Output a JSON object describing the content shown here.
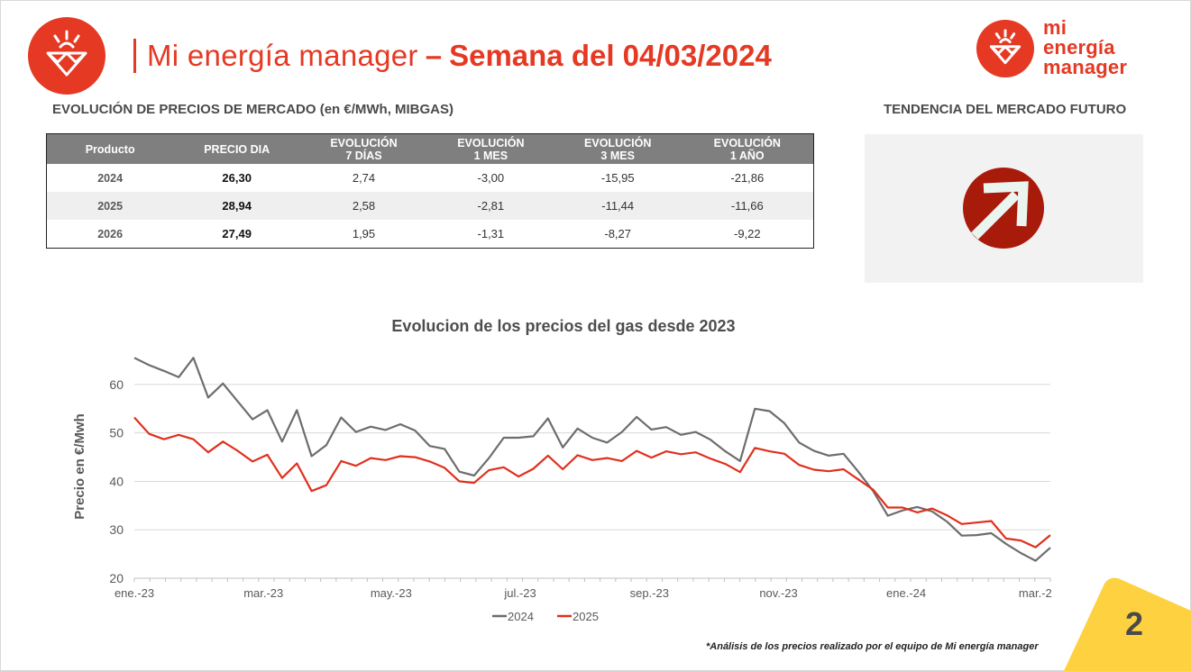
{
  "header": {
    "title_light": "Mi energía manager",
    "title_dash": "–",
    "title_bold": "Semana del 04/03/2024",
    "brand_lines": [
      "mi",
      "energía",
      "manager"
    ]
  },
  "sections": {
    "market_prices": "EVOLUCIÓN DE PRECIOS DE MERCADO (en €/MWh, MIBGAS)",
    "future_trend": "TENDENCIA DEL MERCADO FUTURO"
  },
  "table": {
    "headers": [
      [
        "Producto"
      ],
      [
        "PRECIO DIA"
      ],
      [
        "EVOLUCIÓN",
        "7 DÍAS"
      ],
      [
        "EVOLUCIÓN",
        "1 MES"
      ],
      [
        "EVOLUCIÓN",
        "3 MES"
      ],
      [
        "EVOLUCIÓN",
        "1 AÑO"
      ]
    ],
    "rows": [
      [
        "2024",
        "26,30",
        "2,74",
        "-3,00",
        "-15,95",
        "-21,86"
      ],
      [
        "2025",
        "28,94",
        "2,58",
        "-2,81",
        "-11,44",
        "-11,66"
      ],
      [
        "2026",
        "27,49",
        "1,95",
        "-1,31",
        "-8,27",
        "-9,22"
      ]
    ]
  },
  "trend": {
    "direction": "up",
    "icon": "arrow-up-right-icon",
    "color": "#a81a0a"
  },
  "colors": {
    "accent": "#e53923",
    "series_2024": "#6d6d6d",
    "series_2025": "#e0301e",
    "corner": "#fdd13f"
  },
  "chart_data": {
    "type": "line",
    "title": "Evolucion de los precios del gas desde 2023",
    "xlabel": "",
    "ylabel": "Precio en €/Mwh",
    "ylim": [
      20,
      65
    ],
    "yticks": [
      20,
      30,
      40,
      50,
      60
    ],
    "xlim": [
      0,
      61
    ],
    "x_ticks": [
      {
        "x": 0,
        "label": "ene.-23"
      },
      {
        "x": 8.6,
        "label": "mar.-23"
      },
      {
        "x": 17.1,
        "label": "may.-23"
      },
      {
        "x": 25.7,
        "label": "jul.-23"
      },
      {
        "x": 34.3,
        "label": "sep.-23"
      },
      {
        "x": 42.9,
        "label": "nov.-23"
      },
      {
        "x": 51.4,
        "label": "ene.-24"
      },
      {
        "x": 60,
        "label": "mar.-2"
      }
    ],
    "grid": true,
    "legend_position": "bottom",
    "series": [
      {
        "name": "2024",
        "values": [
          65.5,
          64,
          62.8,
          61.5,
          65.5,
          57.3,
          60.2,
          56.5,
          52.8,
          54.7,
          48.2,
          54.7,
          45.2,
          47.5,
          53.2,
          50.2,
          51.3,
          50.6,
          51.8,
          50.5,
          47.3,
          46.7,
          42,
          41.2,
          44.8,
          49,
          49,
          49.3,
          53,
          47,
          50.9,
          49,
          48,
          50.2,
          53.3,
          50.7,
          51.2,
          49.6,
          50.2,
          48.6,
          46.2,
          44.2,
          55,
          54.5,
          52,
          48,
          46.3,
          45.3,
          45.7,
          42,
          38,
          32.9,
          34,
          34.7,
          33.8,
          31.7,
          28.8,
          28.9,
          29.3,
          27.1,
          25.2,
          23.6,
          26.3
        ]
      },
      {
        "name": "2025",
        "values": [
          53.2,
          49.8,
          48.7,
          49.6,
          48.7,
          46,
          48.2,
          46.3,
          44.1,
          45.5,
          40.7,
          43.7,
          38,
          39.2,
          44.2,
          43.2,
          44.8,
          44.4,
          45.2,
          45,
          44.1,
          42.8,
          40,
          39.7,
          42.3,
          42.9,
          41,
          42.6,
          45.3,
          42.5,
          45.4,
          44.4,
          44.8,
          44.2,
          46.3,
          44.9,
          46.2,
          45.6,
          46,
          44.7,
          43.6,
          41.9,
          46.9,
          46.2,
          45.7,
          43.4,
          42.4,
          42.1,
          42.5,
          40.4,
          38.3,
          34.6,
          34.6,
          33.6,
          34.4,
          33,
          31.2,
          31.5,
          31.8,
          28.2,
          27.8,
          26.4,
          28.9
        ]
      }
    ]
  },
  "footnote": "*Análisis de los precios realizado por el equipo de Mi energía manager",
  "page_number": "2"
}
